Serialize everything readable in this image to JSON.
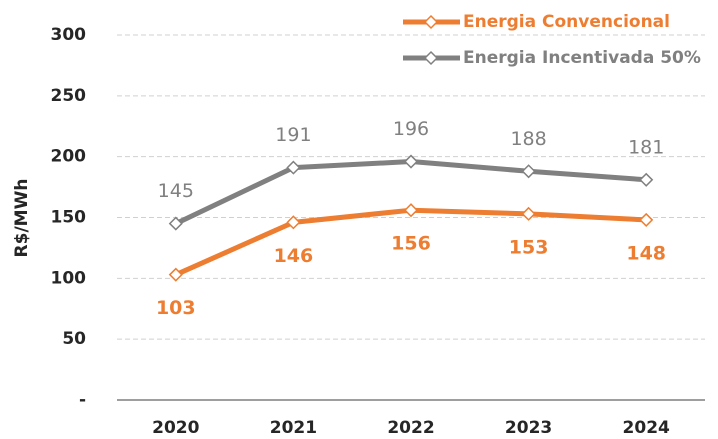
{
  "chart_data": {
    "type": "line",
    "y_label": "R$/MWh",
    "categories": [
      "2020",
      "2021",
      "2022",
      "2023",
      "2024"
    ],
    "series": [
      {
        "name": "Energia Convencional",
        "color": "#ED7D31",
        "values": [
          103,
          146,
          156,
          153,
          148
        ]
      },
      {
        "name": "Energia Incentivada 50%",
        "color": "#808080",
        "values": [
          145,
          191,
          196,
          188,
          181
        ]
      }
    ],
    "ylim": [
      0,
      300
    ],
    "yticks": [
      {
        "value": 0,
        "label": "-"
      },
      50,
      100,
      150,
      200,
      250,
      300
    ],
    "grid": true,
    "legend": "upper right"
  }
}
